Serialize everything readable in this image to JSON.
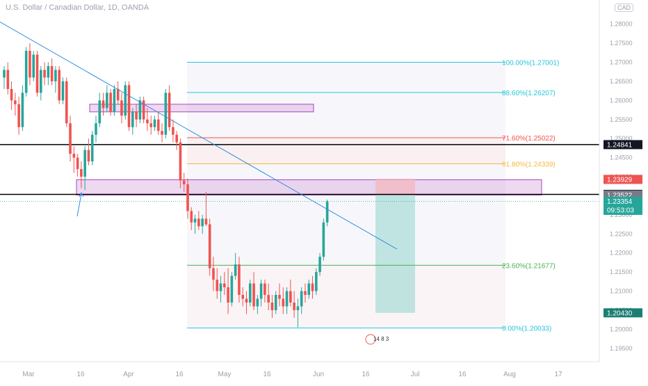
{
  "header": {
    "symbol_title": "U.S. Dollar / Canadian Dollar, 1D, OANDA",
    "currency": "CAD"
  },
  "colors": {
    "up": "#26a69a",
    "down": "#ef5350",
    "trendline": "#2f8fde",
    "fib_100": "#26c6da",
    "fib_886": "#26c6da",
    "fib_716": "#ef5350",
    "fib_618": "#f5b73b",
    "fib_236": "#4caf50",
    "fib_0": "#26c6da",
    "zone": "#ce93d8",
    "axis_text": "#9aa0ab"
  },
  "chart_data": {
    "type": "candlestick",
    "title": "U.S. Dollar / Canadian Dollar, 1D, OANDA",
    "ylim": [
      1.1915,
      1.2825
    ],
    "y_ticks": [
      "1.28000",
      "1.27500",
      "1.27000",
      "1.26500",
      "1.26000",
      "1.25500",
      "1.25000",
      "1.24500",
      "1.24000",
      "1.23500",
      "1.23000",
      "1.22500",
      "1.22000",
      "1.21500",
      "1.21000",
      "1.20500",
      "1.20000",
      "1.19500"
    ],
    "x_ticks": [
      "Mar",
      "16",
      "Apr",
      "16",
      "May",
      "16",
      "Jun",
      "16",
      "Jul",
      "16",
      "Aug",
      "17"
    ],
    "price_labels": [
      {
        "label": "1.24841",
        "value": 1.24841,
        "style": "black"
      },
      {
        "label": "1.23929",
        "value": 1.23929,
        "style": "red"
      },
      {
        "label": "1.23537",
        "value": 1.23537,
        "style": "black"
      },
      {
        "label": "1.23522",
        "value": 1.23522,
        "style": "gray"
      },
      {
        "label": "1.23354",
        "value": 1.23354,
        "style": "teal",
        "countdown": "09:53:03"
      },
      {
        "label": "1.20430",
        "value": 1.2043,
        "style": "darkteal"
      }
    ],
    "horizontal_lines": [
      {
        "name": "resistance",
        "value": 1.24841
      },
      {
        "name": "support",
        "value": 1.23537
      }
    ],
    "fibonacci": [
      {
        "label": "100.00%(1.27001)",
        "value": 1.27001,
        "color_key": "fib_100"
      },
      {
        "label": "88.60%(1.26207)",
        "value": 1.26207,
        "color_key": "fib_886"
      },
      {
        "label": "71.60%(1.25022)",
        "value": 1.25022,
        "color_key": "fib_716"
      },
      {
        "label": "61.80%(1.24339)",
        "value": 1.24339,
        "color_key": "fib_618"
      },
      {
        "label": "23.60%(1.21677)",
        "value": 1.21677,
        "color_key": "fib_236"
      },
      {
        "label": "0.00%(1.20033)",
        "value": 1.20033,
        "color_key": "fib_0"
      }
    ],
    "trendline": {
      "start_value": 1.286,
      "start_bar": -11,
      "end_value": 1.221,
      "end_bar": 107
    },
    "short_position": {
      "entry": 1.2352,
      "stop": 1.2395,
      "target": 1.2043
    },
    "candles": [
      [
        1.266,
        1.269,
        1.263,
        1.268
      ],
      [
        1.268,
        1.27,
        1.2615,
        1.263
      ],
      [
        1.263,
        1.265,
        1.2575,
        1.26
      ],
      [
        1.26,
        1.262,
        1.256,
        1.259
      ],
      [
        1.259,
        1.261,
        1.251,
        1.253
      ],
      [
        1.253,
        1.264,
        1.252,
        1.262
      ],
      [
        1.262,
        1.274,
        1.261,
        1.273
      ],
      [
        1.273,
        1.275,
        1.264,
        1.266
      ],
      [
        1.266,
        1.273,
        1.265,
        1.272
      ],
      [
        1.272,
        1.273,
        1.261,
        1.262
      ],
      [
        1.262,
        1.269,
        1.26,
        1.268
      ],
      [
        1.268,
        1.27,
        1.264,
        1.266
      ],
      [
        1.266,
        1.27,
        1.264,
        1.269
      ],
      [
        1.269,
        1.271,
        1.264,
        1.265
      ],
      [
        1.265,
        1.269,
        1.262,
        1.268
      ],
      [
        1.268,
        1.269,
        1.259,
        1.26
      ],
      [
        1.26,
        1.266,
        1.259,
        1.265
      ],
      [
        1.265,
        1.266,
        1.253,
        1.254
      ],
      [
        1.254,
        1.256,
        1.244,
        1.246
      ],
      [
        1.246,
        1.248,
        1.241,
        1.245
      ],
      [
        1.245,
        1.246,
        1.24,
        1.242
      ],
      [
        1.242,
        1.244,
        1.237,
        1.24
      ],
      [
        1.24,
        1.248,
        1.2365,
        1.247
      ],
      [
        1.247,
        1.25,
        1.243,
        1.244
      ],
      [
        1.244,
        1.252,
        1.243,
        1.251
      ],
      [
        1.251,
        1.256,
        1.249,
        1.254
      ],
      [
        1.254,
        1.262,
        1.253,
        1.26
      ],
      [
        1.26,
        1.262,
        1.256,
        1.258
      ],
      [
        1.258,
        1.264,
        1.257,
        1.262
      ],
      [
        1.262,
        1.263,
        1.256,
        1.257
      ],
      [
        1.257,
        1.264,
        1.256,
        1.263
      ],
      [
        1.263,
        1.265,
        1.259,
        1.26
      ],
      [
        1.26,
        1.262,
        1.254,
        1.256
      ],
      [
        1.256,
        1.265,
        1.255,
        1.264
      ],
      [
        1.264,
        1.265,
        1.252,
        1.253
      ],
      [
        1.253,
        1.258,
        1.251,
        1.257
      ],
      [
        1.257,
        1.259,
        1.253,
        1.255
      ],
      [
        1.255,
        1.261,
        1.254,
        1.26
      ],
      [
        1.26,
        1.261,
        1.254,
        1.255
      ],
      [
        1.255,
        1.258,
        1.252,
        1.254
      ],
      [
        1.254,
        1.256,
        1.251,
        1.253
      ],
      [
        1.253,
        1.256,
        1.252,
        1.255
      ],
      [
        1.255,
        1.257,
        1.251,
        1.252
      ],
      [
        1.252,
        1.254,
        1.249,
        1.251
      ],
      [
        1.251,
        1.263,
        1.25,
        1.262
      ],
      [
        1.262,
        1.264,
        1.252,
        1.253
      ],
      [
        1.253,
        1.255,
        1.249,
        1.251
      ],
      [
        1.251,
        1.252,
        1.247,
        1.249
      ],
      [
        1.249,
        1.25,
        1.237,
        1.239
      ],
      [
        1.239,
        1.241,
        1.236,
        1.238
      ],
      [
        1.238,
        1.2395,
        1.229,
        1.231
      ],
      [
        1.231,
        1.232,
        1.226,
        1.228
      ],
      [
        1.228,
        1.23,
        1.225,
        1.229
      ],
      [
        1.229,
        1.231,
        1.226,
        1.227
      ],
      [
        1.227,
        1.23,
        1.225,
        1.229
      ],
      [
        1.229,
        1.236,
        1.227,
        1.2275
      ],
      [
        1.2275,
        1.229,
        1.214,
        1.216
      ],
      [
        1.216,
        1.219,
        1.21,
        1.213
      ],
      [
        1.213,
        1.216,
        1.208,
        1.21
      ],
      [
        1.21,
        1.214,
        1.207,
        1.212
      ],
      [
        1.212,
        1.215,
        1.209,
        1.211
      ],
      [
        1.211,
        1.216,
        1.204,
        1.207
      ],
      [
        1.207,
        1.215,
        1.206,
        1.214
      ],
      [
        1.214,
        1.22,
        1.213,
        1.217
      ],
      [
        1.217,
        1.219,
        1.207,
        1.209
      ],
      [
        1.209,
        1.211,
        1.206,
        1.208
      ],
      [
        1.208,
        1.21,
        1.204,
        1.207
      ],
      [
        1.207,
        1.213,
        1.206,
        1.212
      ],
      [
        1.212,
        1.215,
        1.205,
        1.206
      ],
      [
        1.206,
        1.209,
        1.204,
        1.208
      ],
      [
        1.208,
        1.213,
        1.206,
        1.212
      ],
      [
        1.212,
        1.213,
        1.207,
        1.209
      ],
      [
        1.209,
        1.212,
        1.205,
        1.207
      ],
      [
        1.207,
        1.209,
        1.203,
        1.205
      ],
      [
        1.205,
        1.21,
        1.204,
        1.209
      ],
      [
        1.209,
        1.212,
        1.206,
        1.208
      ],
      [
        1.208,
        1.211,
        1.204,
        1.206
      ],
      [
        1.206,
        1.211,
        1.204,
        1.21
      ],
      [
        1.21,
        1.213,
        1.206,
        1.207
      ],
      [
        1.207,
        1.21,
        1.203,
        1.205
      ],
      [
        1.205,
        1.208,
        1.2005,
        1.206
      ],
      [
        1.206,
        1.211,
        1.204,
        1.21
      ],
      [
        1.21,
        1.212,
        1.207,
        1.209
      ],
      [
        1.209,
        1.213,
        1.208,
        1.212
      ],
      [
        1.212,
        1.214,
        1.208,
        1.21
      ],
      [
        1.21,
        1.216,
        1.209,
        1.215
      ],
      [
        1.215,
        1.22,
        1.214,
        1.219
      ],
      [
        1.219,
        1.229,
        1.218,
        1.228
      ],
      [
        1.228,
        1.234,
        1.227,
        1.2335
      ]
    ],
    "markers": {
      "arrow_label": "",
      "calendar_badge": "14 8 3"
    }
  }
}
